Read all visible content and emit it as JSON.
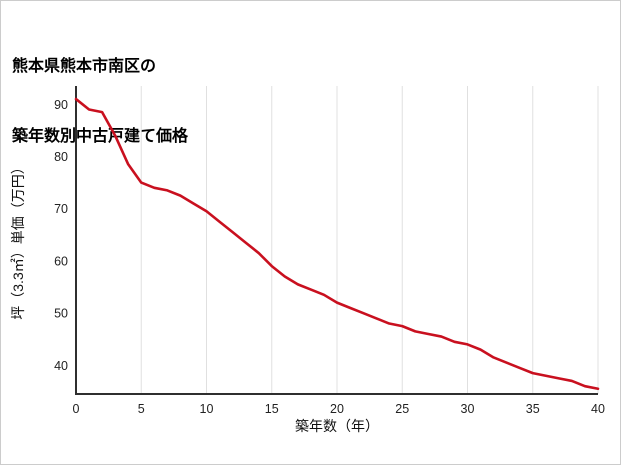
{
  "title": {
    "line1": "熊本県熊本市南区の",
    "line2": "築年数別中古戸建て価格"
  },
  "chart_data": {
    "type": "line",
    "title": "熊本県熊本市南区の築年数別中古戸建て価格",
    "xlabel": "築年数（年）",
    "ylabel": "坪（3.3㎡）単価（万円）",
    "x": [
      0,
      1,
      2,
      3,
      4,
      5,
      6,
      7,
      8,
      9,
      10,
      11,
      12,
      13,
      14,
      15,
      16,
      17,
      18,
      19,
      20,
      21,
      22,
      23,
      24,
      25,
      26,
      27,
      28,
      29,
      30,
      31,
      32,
      33,
      34,
      35,
      36,
      37,
      38,
      39,
      40
    ],
    "series": [
      {
        "name": "坪単価",
        "values": [
          91,
          89,
          88.5,
          84,
          78.5,
          75,
          74,
          73.5,
          72.5,
          71,
          69.5,
          67.5,
          65.5,
          63.5,
          61.5,
          59,
          57,
          55.5,
          54.5,
          53.5,
          52,
          51,
          50,
          49,
          48,
          47.5,
          46.5,
          46,
          45.5,
          44.5,
          44,
          43,
          41.5,
          40.5,
          39.5,
          38.5,
          38,
          37.5,
          37,
          36,
          35.5
        ]
      }
    ],
    "xticks": [
      0,
      5,
      10,
      15,
      20,
      25,
      30,
      35,
      40
    ],
    "yticks": [
      40,
      50,
      60,
      70,
      80,
      90
    ],
    "xlim": [
      0,
      40
    ],
    "ylim": [
      34.5,
      93.5
    ],
    "grid": "vertical-only",
    "legend": "none",
    "line_color": "#c9101f",
    "axis_color": "#2f2f2f",
    "grid_color": "#e0e0e0",
    "background_color": "#ffffff"
  }
}
